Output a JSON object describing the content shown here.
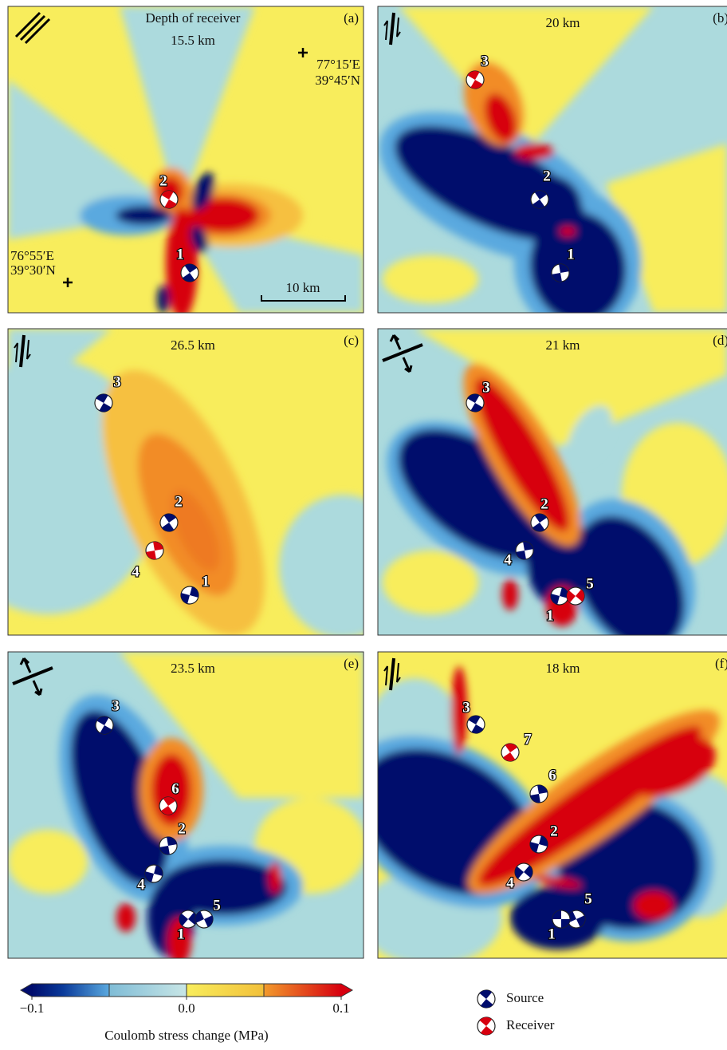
{
  "depth_caption": "Depth of receiver",
  "panels": [
    {
      "label": "(a)",
      "title": "15.5 km",
      "events": [
        {
          "number": "2",
          "role": "receiver"
        },
        {
          "number": "1",
          "role": "source"
        }
      ]
    },
    {
      "label": "(b)",
      "title": "20 km",
      "events": [
        {
          "number": "3",
          "role": "receiver"
        },
        {
          "number": "2",
          "role": "source"
        },
        {
          "number": "1",
          "role": "source"
        }
      ]
    },
    {
      "label": "(c)",
      "title": "26.5 km",
      "events": [
        {
          "number": "3",
          "role": "source"
        },
        {
          "number": "2",
          "role": "source"
        },
        {
          "number": "4",
          "role": "receiver"
        },
        {
          "number": "1",
          "role": "source"
        }
      ]
    },
    {
      "label": "(d)",
      "title": "21 km",
      "events": [
        {
          "number": "3",
          "role": "source"
        },
        {
          "number": "2",
          "role": "source"
        },
        {
          "number": "4",
          "role": "source"
        },
        {
          "number": "1",
          "role": "source"
        },
        {
          "number": "5",
          "role": "receiver"
        }
      ]
    },
    {
      "label": "(e)",
      "title": "23.5 km",
      "events": [
        {
          "number": "3",
          "role": "source"
        },
        {
          "number": "6",
          "role": "receiver"
        },
        {
          "number": "2",
          "role": "source"
        },
        {
          "number": "4",
          "role": "source"
        },
        {
          "number": "1",
          "role": "source"
        },
        {
          "number": "5",
          "role": "source"
        }
      ]
    },
    {
      "label": "(f)",
      "title": "18 km",
      "events": [
        {
          "number": "3",
          "role": "source"
        },
        {
          "number": "7",
          "role": "receiver"
        },
        {
          "number": "6",
          "role": "source"
        },
        {
          "number": "2",
          "role": "source"
        },
        {
          "number": "4",
          "role": "source"
        },
        {
          "number": "5",
          "role": "source"
        },
        {
          "number": "1",
          "role": "source"
        }
      ]
    }
  ],
  "coordinates": {
    "ne_lon": "77°15′E",
    "ne_lat": "39°45′N",
    "sw_lon": "76°55′E",
    "sw_lat": "39°30′N"
  },
  "scale_bar": "10 km",
  "colorbar": {
    "label": "Coulomb stress change (MPa)",
    "lim": [
      -0.1,
      0.1
    ],
    "ticks": [
      {
        "value": -0.1,
        "label": "−0.1"
      },
      {
        "value": 0,
        "label": "0.0"
      },
      {
        "value": 0.1,
        "label": "0.1"
      }
    ]
  },
  "legend": {
    "source": "Source",
    "receiver": "Receiver"
  }
}
